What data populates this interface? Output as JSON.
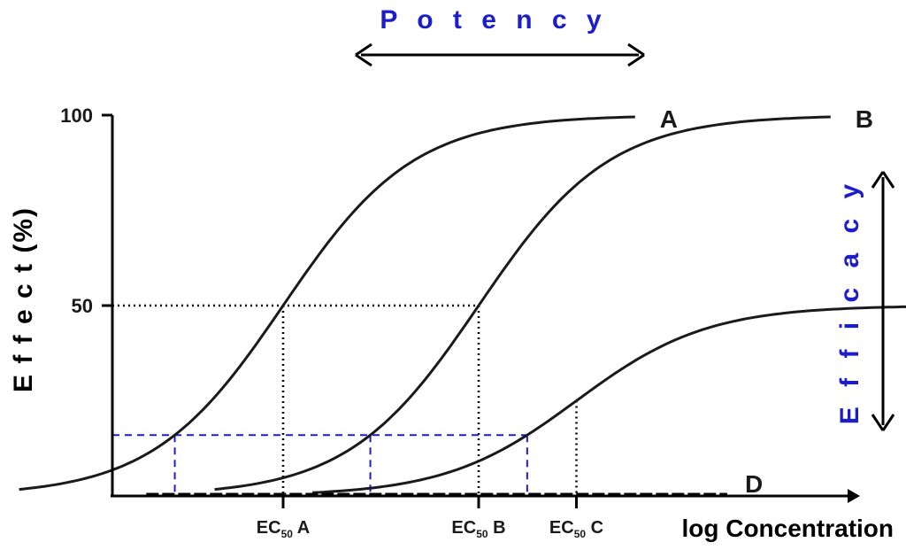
{
  "chart_data": {
    "type": "line",
    "title": "",
    "xlabel": "log Concentration",
    "ylabel": "E f f e c t (%)",
    "ylim": [
      0,
      100
    ],
    "yticks": [
      {
        "value": 100,
        "label": "100"
      },
      {
        "value": 50,
        "label": "50"
      }
    ],
    "x_scale": "log",
    "series": [
      {
        "name": "A",
        "ec50_log": 0.5,
        "max": 100,
        "hill": 1.3
      },
      {
        "name": "B",
        "ec50_log": 1.5,
        "max": 100,
        "hill": 1.3
      },
      {
        "name": "C",
        "ec50_log": 2.0,
        "max": 50,
        "hill": 1.3
      },
      {
        "name": "D",
        "ec50_log": null,
        "max": 0,
        "hill": 0
      }
    ],
    "ec50_labels": [
      {
        "prefix": "EC",
        "sub": "50",
        "suffix": " A"
      },
      {
        "prefix": "EC",
        "sub": "50",
        "suffix": " B"
      },
      {
        "prefix": "EC",
        "sub": "50",
        "suffix": " C"
      }
    ],
    "reference_level": 16,
    "annotations": {
      "potency": "P o t e n c y",
      "efficacy": "E f f i c a c y"
    },
    "colors": {
      "curve": "#1a1a1a",
      "annotation": "#1e1ec8",
      "reference": "#1e1ec8"
    },
    "grid": false,
    "legend": "none"
  }
}
